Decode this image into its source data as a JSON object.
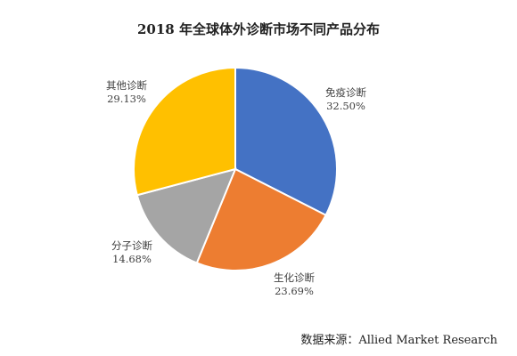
{
  "chart_data": {
    "type": "pie",
    "title": "2018 年全球体外诊断市场不同产品分布",
    "slices": [
      {
        "label": "免疫诊断",
        "value": 32.5,
        "value_label": "32.50%",
        "color": "#4472C4"
      },
      {
        "label": "生化诊断",
        "value": 23.69,
        "value_label": "23.69%",
        "color": "#ED7D31"
      },
      {
        "label": "分子诊断",
        "value": 14.68,
        "value_label": "14.68%",
        "color": "#A5A5A5"
      },
      {
        "label": "其他诊断",
        "value": 29.13,
        "value_label": "29.13%",
        "color": "#FFC000"
      }
    ],
    "start_angle": "12 o'clock",
    "direction": "clockwise",
    "legend": "none"
  },
  "source": "数据来源：Allied Market Research"
}
